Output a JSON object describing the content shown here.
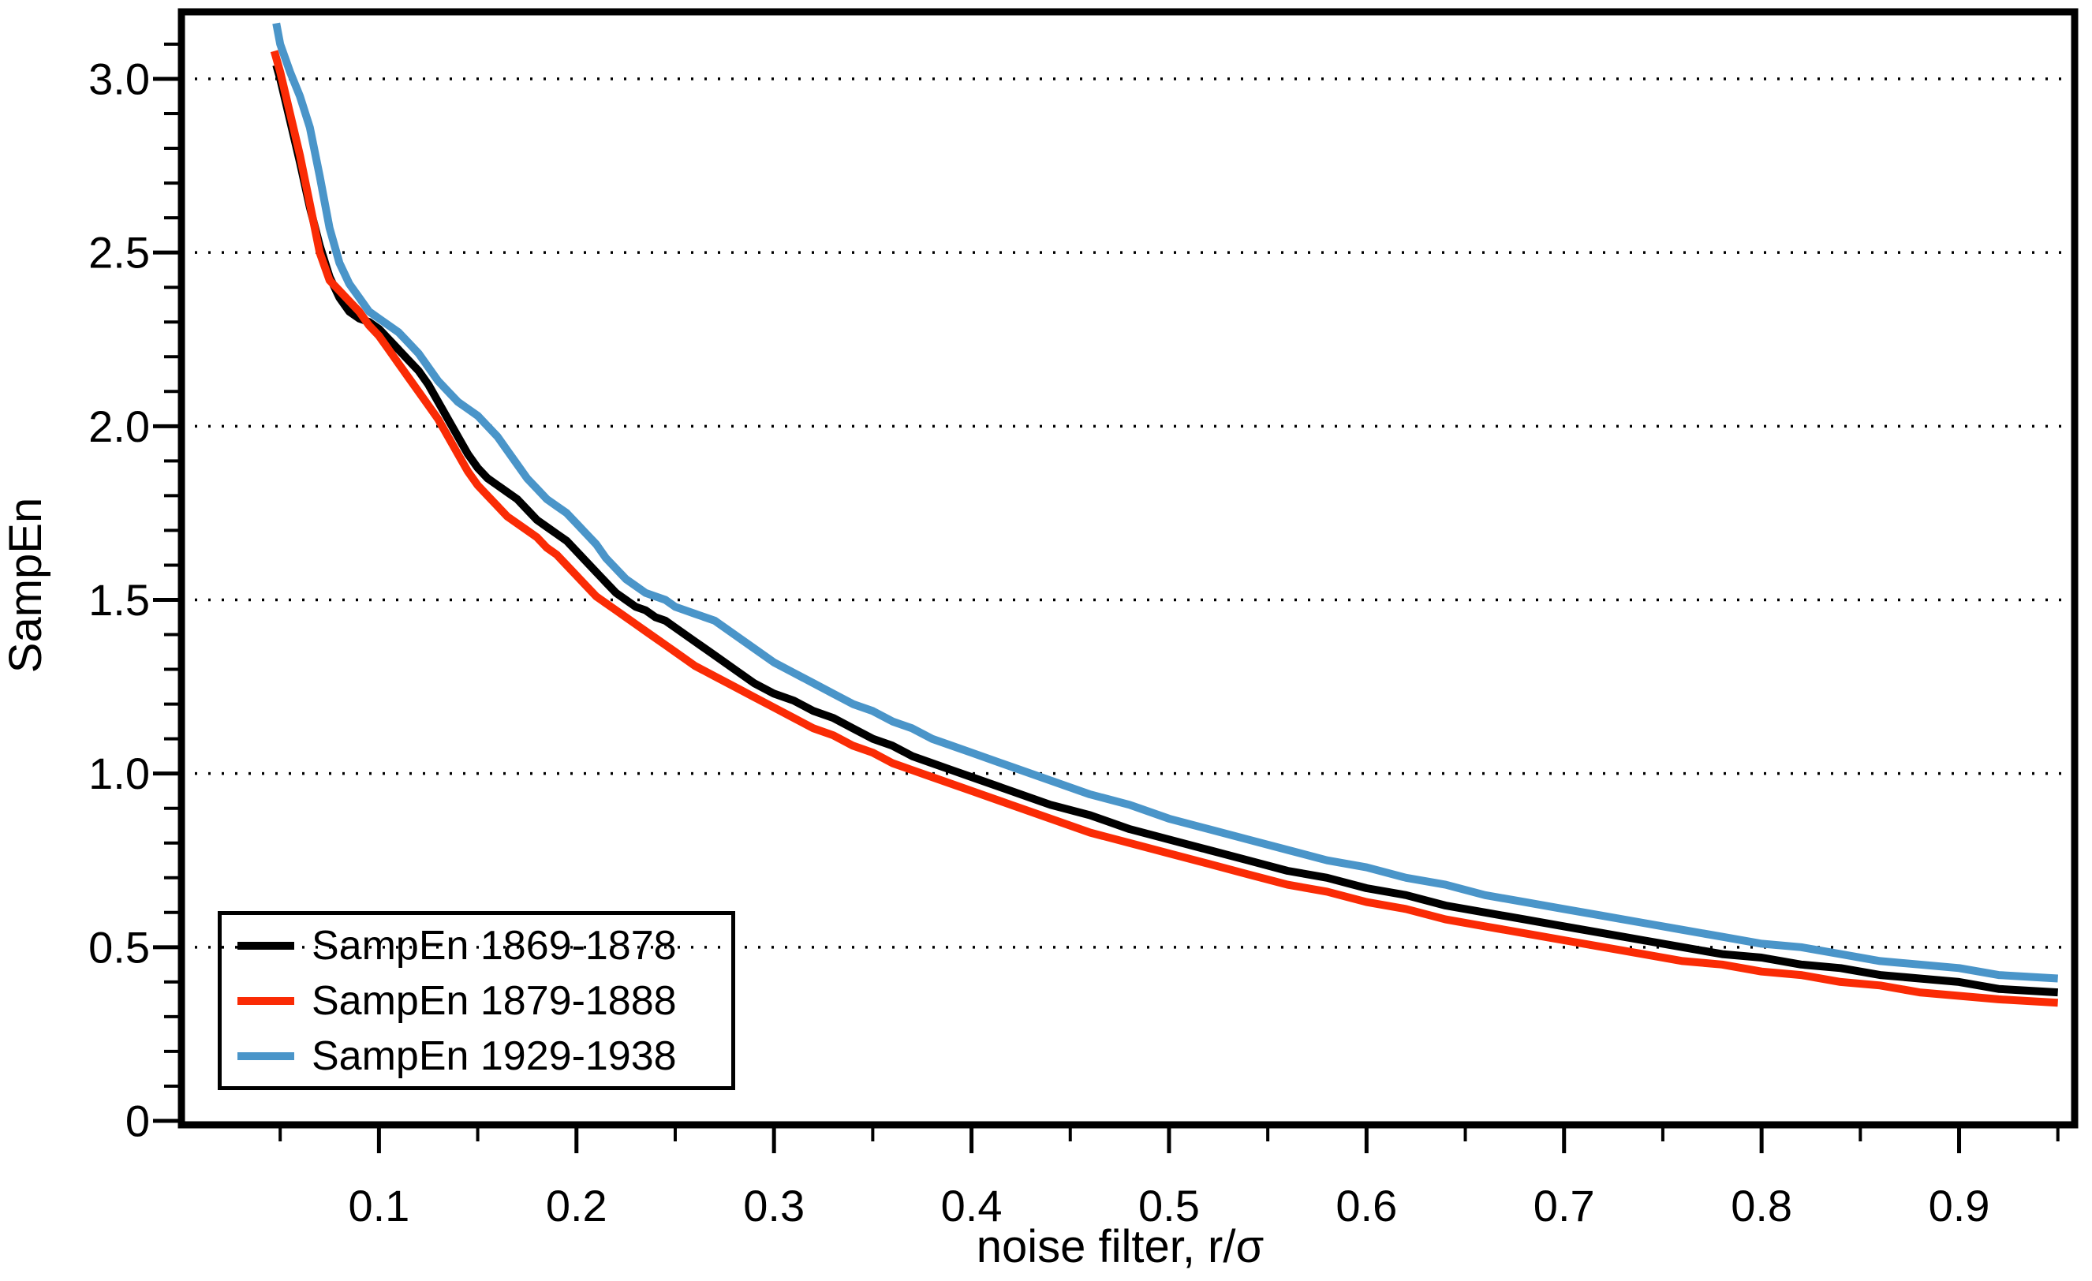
{
  "figure": {
    "background_color": "#ffffff",
    "text_color": "#000000"
  },
  "chart_data": {
    "type": "line",
    "title": "",
    "xlabel": "noise filter, r/σ",
    "ylabel": "SampEn",
    "xlim": [
      0,
      0.9585
    ],
    "ylim": [
      0,
      3.193
    ],
    "grid": "horizontal dotted lines at each labeled y value",
    "grid_color": "#000000",
    "legend_position": "lower-left",
    "x_major_ticks": [
      0.1,
      0.2,
      0.3,
      0.4,
      0.5,
      0.6,
      0.7,
      0.8,
      0.9
    ],
    "x_major_tick_labels": [
      "0.1",
      "0.2",
      "0.3",
      "0.4",
      "0.5",
      "0.6",
      "0.7",
      "0.8",
      "0.9"
    ],
    "x_minor_ticks": [
      0.05,
      0.15,
      0.25,
      0.35,
      0.45,
      0.55,
      0.65,
      0.75,
      0.85,
      0.95
    ],
    "y_major_ticks": [
      0,
      0.5,
      1.0,
      1.5,
      2.0,
      2.5,
      3.0
    ],
    "y_major_tick_labels": [
      "0",
      "0.5",
      "1.0",
      "1.5",
      "2.0",
      "2.5",
      "3.0"
    ],
    "y_minor_ticks": [
      0.1,
      0.2,
      0.3,
      0.4,
      0.6,
      0.7,
      0.8,
      0.9,
      1.1,
      1.2,
      1.3,
      1.4,
      1.6,
      1.7,
      1.8,
      1.9,
      2.1,
      2.2,
      2.3,
      2.4,
      2.6,
      2.7,
      2.8,
      2.9,
      3.1
    ],
    "series": [
      {
        "name": "SampEn 1869-1878",
        "color": "#000000",
        "points": [
          [
            0.048,
            3.04
          ],
          [
            0.05,
            3.0
          ],
          [
            0.055,
            2.88
          ],
          [
            0.06,
            2.76
          ],
          [
            0.065,
            2.63
          ],
          [
            0.07,
            2.52
          ],
          [
            0.075,
            2.43
          ],
          [
            0.08,
            2.37
          ],
          [
            0.085,
            2.33
          ],
          [
            0.09,
            2.31
          ],
          [
            0.095,
            2.3
          ],
          [
            0.1,
            2.28
          ],
          [
            0.105,
            2.25
          ],
          [
            0.11,
            2.22
          ],
          [
            0.115,
            2.19
          ],
          [
            0.12,
            2.16
          ],
          [
            0.125,
            2.12
          ],
          [
            0.13,
            2.07
          ],
          [
            0.135,
            2.02
          ],
          [
            0.14,
            1.97
          ],
          [
            0.145,
            1.92
          ],
          [
            0.15,
            1.88
          ],
          [
            0.155,
            1.85
          ],
          [
            0.16,
            1.83
          ],
          [
            0.165,
            1.81
          ],
          [
            0.17,
            1.79
          ],
          [
            0.175,
            1.76
          ],
          [
            0.18,
            1.73
          ],
          [
            0.185,
            1.71
          ],
          [
            0.19,
            1.69
          ],
          [
            0.195,
            1.67
          ],
          [
            0.2,
            1.64
          ],
          [
            0.205,
            1.61
          ],
          [
            0.21,
            1.58
          ],
          [
            0.215,
            1.55
          ],
          [
            0.22,
            1.52
          ],
          [
            0.225,
            1.5
          ],
          [
            0.23,
            1.48
          ],
          [
            0.235,
            1.47
          ],
          [
            0.24,
            1.45
          ],
          [
            0.245,
            1.44
          ],
          [
            0.25,
            1.42
          ],
          [
            0.26,
            1.38
          ],
          [
            0.27,
            1.34
          ],
          [
            0.28,
            1.3
          ],
          [
            0.29,
            1.26
          ],
          [
            0.3,
            1.23
          ],
          [
            0.31,
            1.21
          ],
          [
            0.32,
            1.18
          ],
          [
            0.33,
            1.16
          ],
          [
            0.34,
            1.13
          ],
          [
            0.35,
            1.1
          ],
          [
            0.36,
            1.08
          ],
          [
            0.37,
            1.05
          ],
          [
            0.38,
            1.03
          ],
          [
            0.39,
            1.01
          ],
          [
            0.4,
            0.99
          ],
          [
            0.42,
            0.95
          ],
          [
            0.44,
            0.91
          ],
          [
            0.46,
            0.88
          ],
          [
            0.48,
            0.84
          ],
          [
            0.5,
            0.81
          ],
          [
            0.52,
            0.78
          ],
          [
            0.54,
            0.75
          ],
          [
            0.56,
            0.72
          ],
          [
            0.58,
            0.7
          ],
          [
            0.6,
            0.67
          ],
          [
            0.62,
            0.65
          ],
          [
            0.64,
            0.62
          ],
          [
            0.66,
            0.6
          ],
          [
            0.68,
            0.58
          ],
          [
            0.7,
            0.56
          ],
          [
            0.72,
            0.54
          ],
          [
            0.74,
            0.52
          ],
          [
            0.76,
            0.5
          ],
          [
            0.78,
            0.48
          ],
          [
            0.8,
            0.47
          ],
          [
            0.82,
            0.45
          ],
          [
            0.84,
            0.44
          ],
          [
            0.86,
            0.42
          ],
          [
            0.88,
            0.41
          ],
          [
            0.9,
            0.4
          ],
          [
            0.92,
            0.38
          ],
          [
            0.95,
            0.37
          ]
        ]
      },
      {
        "name": "SampEn 1879-1888",
        "color": "#fa2b05",
        "points": [
          [
            0.047,
            3.08
          ],
          [
            0.05,
            3.02
          ],
          [
            0.055,
            2.9
          ],
          [
            0.06,
            2.78
          ],
          [
            0.065,
            2.64
          ],
          [
            0.07,
            2.5
          ],
          [
            0.075,
            2.42
          ],
          [
            0.08,
            2.39
          ],
          [
            0.085,
            2.36
          ],
          [
            0.09,
            2.33
          ],
          [
            0.095,
            2.29
          ],
          [
            0.1,
            2.26
          ],
          [
            0.105,
            2.22
          ],
          [
            0.11,
            2.18
          ],
          [
            0.115,
            2.14
          ],
          [
            0.12,
            2.1
          ],
          [
            0.125,
            2.06
          ],
          [
            0.13,
            2.02
          ],
          [
            0.135,
            1.97
          ],
          [
            0.14,
            1.92
          ],
          [
            0.145,
            1.87
          ],
          [
            0.15,
            1.83
          ],
          [
            0.155,
            1.8
          ],
          [
            0.16,
            1.77
          ],
          [
            0.165,
            1.74
          ],
          [
            0.17,
            1.72
          ],
          [
            0.175,
            1.7
          ],
          [
            0.18,
            1.68
          ],
          [
            0.185,
            1.65
          ],
          [
            0.19,
            1.63
          ],
          [
            0.195,
            1.6
          ],
          [
            0.2,
            1.57
          ],
          [
            0.205,
            1.54
          ],
          [
            0.21,
            1.51
          ],
          [
            0.215,
            1.49
          ],
          [
            0.22,
            1.47
          ],
          [
            0.225,
            1.45
          ],
          [
            0.23,
            1.43
          ],
          [
            0.235,
            1.41
          ],
          [
            0.24,
            1.39
          ],
          [
            0.245,
            1.37
          ],
          [
            0.25,
            1.35
          ],
          [
            0.26,
            1.31
          ],
          [
            0.27,
            1.28
          ],
          [
            0.28,
            1.25
          ],
          [
            0.29,
            1.22
          ],
          [
            0.3,
            1.19
          ],
          [
            0.31,
            1.16
          ],
          [
            0.32,
            1.13
          ],
          [
            0.33,
            1.11
          ],
          [
            0.34,
            1.08
          ],
          [
            0.35,
            1.06
          ],
          [
            0.36,
            1.03
          ],
          [
            0.37,
            1.01
          ],
          [
            0.38,
            0.99
          ],
          [
            0.39,
            0.97
          ],
          [
            0.4,
            0.95
          ],
          [
            0.42,
            0.91
          ],
          [
            0.44,
            0.87
          ],
          [
            0.46,
            0.83
          ],
          [
            0.48,
            0.8
          ],
          [
            0.5,
            0.77
          ],
          [
            0.52,
            0.74
          ],
          [
            0.54,
            0.71
          ],
          [
            0.56,
            0.68
          ],
          [
            0.58,
            0.66
          ],
          [
            0.6,
            0.63
          ],
          [
            0.62,
            0.61
          ],
          [
            0.64,
            0.58
          ],
          [
            0.66,
            0.56
          ],
          [
            0.68,
            0.54
          ],
          [
            0.7,
            0.52
          ],
          [
            0.72,
            0.5
          ],
          [
            0.74,
            0.48
          ],
          [
            0.76,
            0.46
          ],
          [
            0.78,
            0.45
          ],
          [
            0.8,
            0.43
          ],
          [
            0.82,
            0.42
          ],
          [
            0.84,
            0.4
          ],
          [
            0.86,
            0.39
          ],
          [
            0.88,
            0.37
          ],
          [
            0.9,
            0.36
          ],
          [
            0.92,
            0.35
          ],
          [
            0.95,
            0.34
          ]
        ]
      },
      {
        "name": "SampEn 1929-1938",
        "color": "#4a95c9",
        "points": [
          [
            0.048,
            3.16
          ],
          [
            0.05,
            3.1
          ],
          [
            0.055,
            3.02
          ],
          [
            0.06,
            2.95
          ],
          [
            0.065,
            2.86
          ],
          [
            0.07,
            2.72
          ],
          [
            0.075,
            2.57
          ],
          [
            0.08,
            2.47
          ],
          [
            0.085,
            2.41
          ],
          [
            0.09,
            2.37
          ],
          [
            0.095,
            2.33
          ],
          [
            0.1,
            2.31
          ],
          [
            0.105,
            2.29
          ],
          [
            0.11,
            2.27
          ],
          [
            0.115,
            2.24
          ],
          [
            0.12,
            2.21
          ],
          [
            0.125,
            2.17
          ],
          [
            0.13,
            2.13
          ],
          [
            0.135,
            2.1
          ],
          [
            0.14,
            2.07
          ],
          [
            0.145,
            2.05
          ],
          [
            0.15,
            2.03
          ],
          [
            0.155,
            2.0
          ],
          [
            0.16,
            1.97
          ],
          [
            0.165,
            1.93
          ],
          [
            0.17,
            1.89
          ],
          [
            0.175,
            1.85
          ],
          [
            0.18,
            1.82
          ],
          [
            0.185,
            1.79
          ],
          [
            0.19,
            1.77
          ],
          [
            0.195,
            1.75
          ],
          [
            0.2,
            1.72
          ],
          [
            0.205,
            1.69
          ],
          [
            0.21,
            1.66
          ],
          [
            0.215,
            1.62
          ],
          [
            0.22,
            1.59
          ],
          [
            0.225,
            1.56
          ],
          [
            0.23,
            1.54
          ],
          [
            0.235,
            1.52
          ],
          [
            0.24,
            1.51
          ],
          [
            0.245,
            1.5
          ],
          [
            0.25,
            1.48
          ],
          [
            0.26,
            1.46
          ],
          [
            0.27,
            1.44
          ],
          [
            0.28,
            1.4
          ],
          [
            0.29,
            1.36
          ],
          [
            0.3,
            1.32
          ],
          [
            0.31,
            1.29
          ],
          [
            0.32,
            1.26
          ],
          [
            0.33,
            1.23
          ],
          [
            0.34,
            1.2
          ],
          [
            0.35,
            1.18
          ],
          [
            0.36,
            1.15
          ],
          [
            0.37,
            1.13
          ],
          [
            0.38,
            1.1
          ],
          [
            0.39,
            1.08
          ],
          [
            0.4,
            1.06
          ],
          [
            0.42,
            1.02
          ],
          [
            0.44,
            0.98
          ],
          [
            0.46,
            0.94
          ],
          [
            0.48,
            0.91
          ],
          [
            0.5,
            0.87
          ],
          [
            0.52,
            0.84
          ],
          [
            0.54,
            0.81
          ],
          [
            0.56,
            0.78
          ],
          [
            0.58,
            0.75
          ],
          [
            0.6,
            0.73
          ],
          [
            0.62,
            0.7
          ],
          [
            0.64,
            0.68
          ],
          [
            0.66,
            0.65
          ],
          [
            0.68,
            0.63
          ],
          [
            0.7,
            0.61
          ],
          [
            0.72,
            0.59
          ],
          [
            0.74,
            0.57
          ],
          [
            0.76,
            0.55
          ],
          [
            0.78,
            0.53
          ],
          [
            0.8,
            0.51
          ],
          [
            0.82,
            0.5
          ],
          [
            0.84,
            0.48
          ],
          [
            0.86,
            0.46
          ],
          [
            0.88,
            0.45
          ],
          [
            0.9,
            0.44
          ],
          [
            0.92,
            0.42
          ],
          [
            0.95,
            0.41
          ]
        ]
      }
    ]
  },
  "legend": {
    "entries": [
      {
        "label": "SampEn 1869-1878",
        "color": "#000000"
      },
      {
        "label": "SampEn 1879-1888",
        "color": "#fa2b05"
      },
      {
        "label": "SampEn 1929-1938",
        "color": "#4a95c9"
      }
    ]
  }
}
